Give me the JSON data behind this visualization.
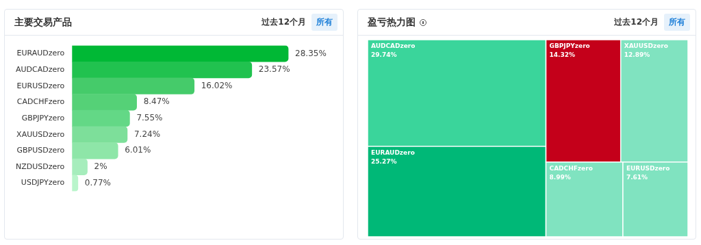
{
  "chart_data": [
    {
      "type": "bar",
      "orientation": "horizontal",
      "title": "主要交易产品",
      "annotations": [
        "过去12个月",
        "所有"
      ],
      "categories": [
        "EURAUDzero",
        "AUDCADzero",
        "EURUSDzero",
        "CADCHFzero",
        "GBPJPYzero",
        "XAUUSDzero",
        "GBPUSDzero",
        "NZDUSDzero",
        "USDJPYzero"
      ],
      "values": [
        28.35,
        23.57,
        16.02,
        8.47,
        7.55,
        7.24,
        6.01,
        2,
        0.77
      ],
      "value_labels": [
        "28.35%",
        "23.57%",
        "16.02%",
        "8.47%",
        "7.55%",
        "7.24%",
        "6.01%",
        "2%",
        "0.77%"
      ],
      "colors": [
        "#00b835",
        "#21c24f",
        "#45cb6a",
        "#55d177",
        "#63d886",
        "#7ddf9a",
        "#8ee6a8",
        "#a6edbc",
        "#b9f5cb"
      ]
    },
    {
      "type": "other",
      "title": "盈亏热力图",
      "annotations": [
        "过去12个月",
        "所有"
      ],
      "categories": [
        "AUDCADzero",
        "EURAUDzero",
        "GBPJPYzero",
        "XAUUSDzero",
        "CADCHFzero",
        "EURUSDzero"
      ],
      "values": [
        29.74,
        25.27,
        14.32,
        12.89,
        8.99,
        7.61
      ],
      "value_labels": [
        "29.74%",
        "25.27%",
        "14.32%",
        "12.89%",
        "8.99%",
        "7.61%"
      ],
      "colors": [
        "#3ad59b",
        "#00b877",
        "#c4001a",
        "#80e3c0",
        "#80e3c0",
        "#80e3c0"
      ]
    }
  ]
}
